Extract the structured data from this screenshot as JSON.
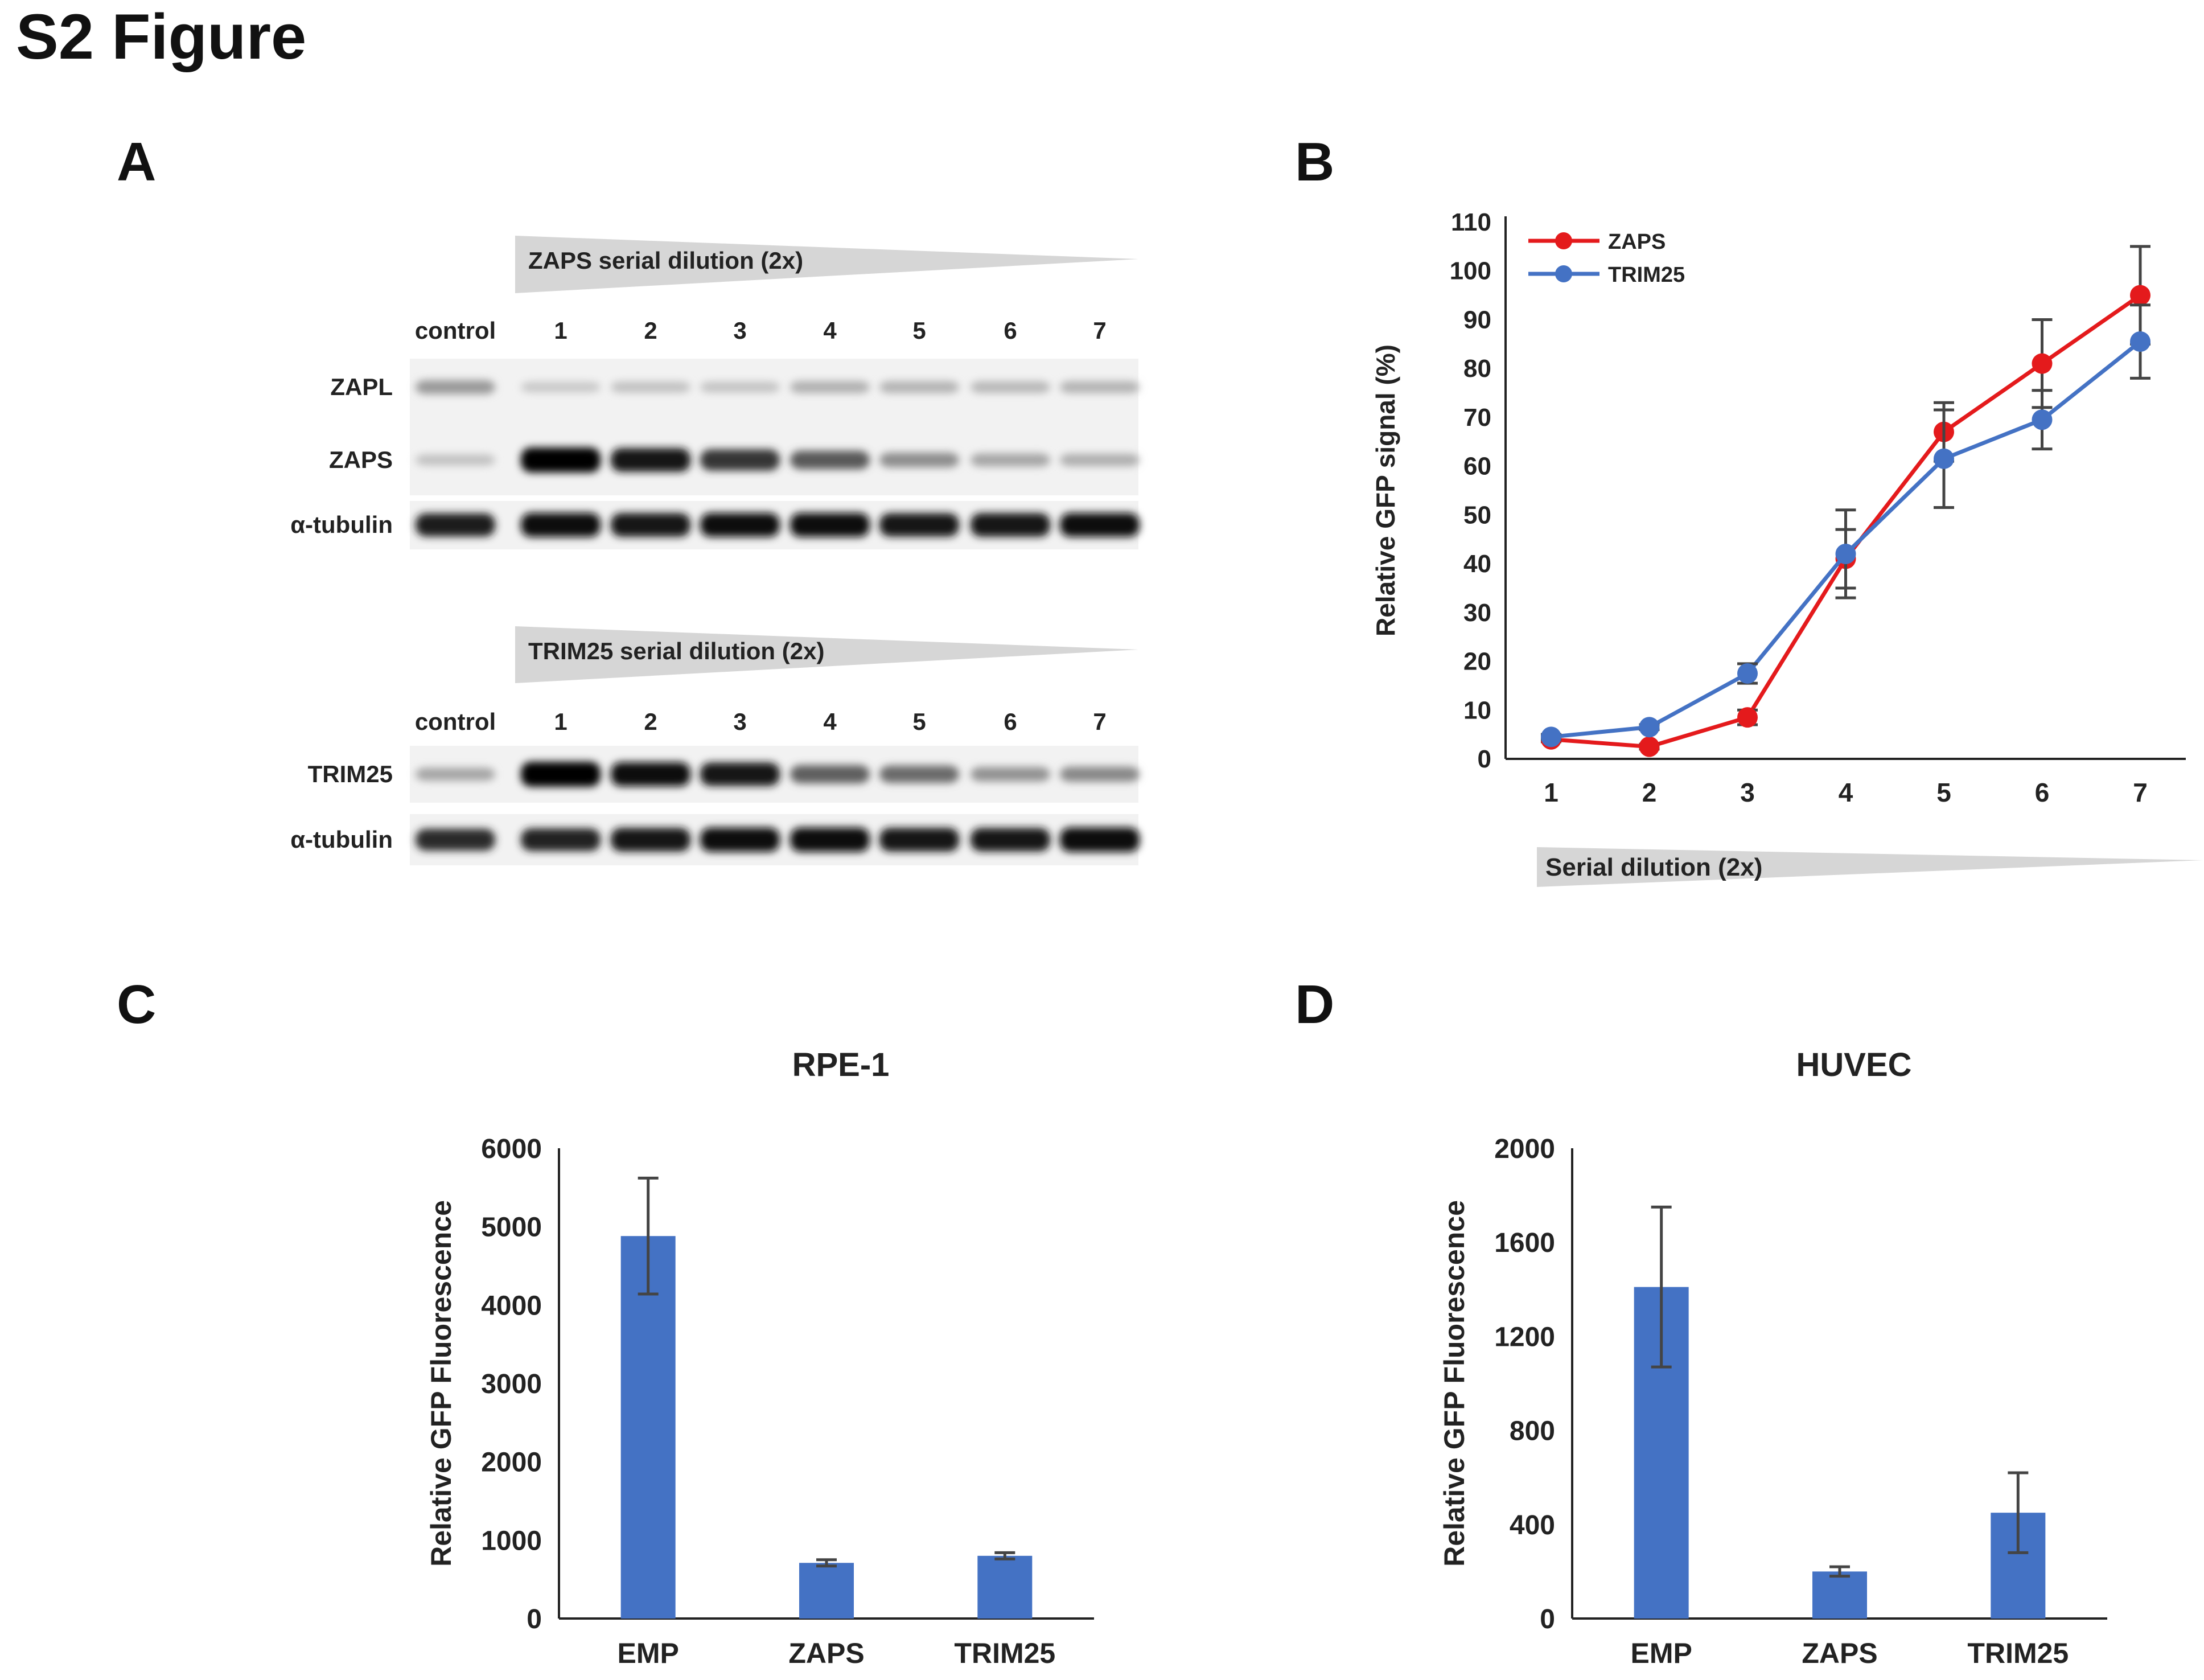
{
  "figure_title": "S2 Figure",
  "panels": {
    "a": {
      "letter": "A",
      "blot1": {
        "dilution_label": "ZAPS serial dilution (2x)",
        "lanes": [
          "control",
          "1",
          "2",
          "3",
          "4",
          "5",
          "6",
          "7"
        ],
        "rows": [
          {
            "label": "ZAPL",
            "intensity": [
              0.35,
              0.15,
              0.18,
              0.17,
              0.25,
              0.24,
              0.22,
              0.24
            ]
          },
          {
            "label": "ZAPS",
            "intensity": [
              0.18,
              1.0,
              0.92,
              0.78,
              0.62,
              0.4,
              0.3,
              0.26
            ]
          },
          {
            "label": "α-tubulin",
            "intensity": [
              0.88,
              0.95,
              0.92,
              0.93,
              0.94,
              0.9,
              0.92,
              0.93
            ]
          }
        ]
      },
      "blot2": {
        "dilution_label": "TRIM25 serial dilution (2x)",
        "lanes": [
          "control",
          "1",
          "2",
          "3",
          "4",
          "5",
          "6",
          "7"
        ],
        "rows": [
          {
            "label": "TRIM25",
            "intensity": [
              0.3,
              1.0,
              0.94,
              0.9,
              0.6,
              0.55,
              0.38,
              0.42
            ]
          },
          {
            "label": "α-tubulin",
            "intensity": [
              0.82,
              0.86,
              0.92,
              0.95,
              0.96,
              0.92,
              0.9,
              0.97
            ]
          }
        ]
      }
    },
    "b": {
      "letter": "B"
    },
    "c": {
      "letter": "C"
    },
    "d": {
      "letter": "D"
    }
  },
  "chart_data": [
    {
      "type": "line",
      "ylabel": "Relative GFP signal (%)",
      "xlabel": "Serial dilution (2x)",
      "x": [
        1,
        2,
        3,
        4,
        5,
        6,
        7
      ],
      "ylim": [
        0,
        110
      ],
      "yticks": [
        0,
        10,
        20,
        30,
        40,
        50,
        60,
        70,
        80,
        90,
        100,
        110
      ],
      "grid": false,
      "legend_position": "top-left",
      "series": [
        {
          "name": "ZAPS",
          "color": "#e41a1c",
          "values": [
            4,
            2.5,
            8.5,
            41,
            67,
            81,
            95
          ],
          "errors": [
            0.5,
            0.5,
            1.5,
            6,
            6,
            9,
            10
          ]
        },
        {
          "name": "TRIM25",
          "color": "#4472c4",
          "values": [
            4.5,
            6.5,
            17.5,
            42,
            61.5,
            69.5,
            85.5
          ],
          "errors": [
            0.5,
            0.5,
            2,
            9,
            10,
            6,
            7.5
          ]
        }
      ]
    },
    {
      "type": "bar",
      "title": "RPE-1",
      "ylabel": "Relative GFP Fluorescence",
      "categories": [
        "EMP",
        "ZAPS",
        "TRIM25"
      ],
      "values": [
        4880,
        710,
        800
      ],
      "errors": [
        740,
        40,
        40
      ],
      "ylim": [
        0,
        6000
      ],
      "yticks": [
        0,
        1000,
        2000,
        3000,
        4000,
        5000,
        6000
      ],
      "color": "#4472c4",
      "grid": false
    },
    {
      "type": "bar",
      "title": "HUVEC",
      "ylabel": "Relative GFP Fluorescence",
      "categories": [
        "EMP",
        "ZAPS",
        "TRIM25"
      ],
      "values": [
        1410,
        200,
        450
      ],
      "errors": [
        340,
        20,
        170
      ],
      "ylim": [
        0,
        2000
      ],
      "yticks": [
        0,
        400,
        800,
        1200,
        1600,
        2000
      ],
      "color": "#4472c4",
      "grid": false
    }
  ]
}
